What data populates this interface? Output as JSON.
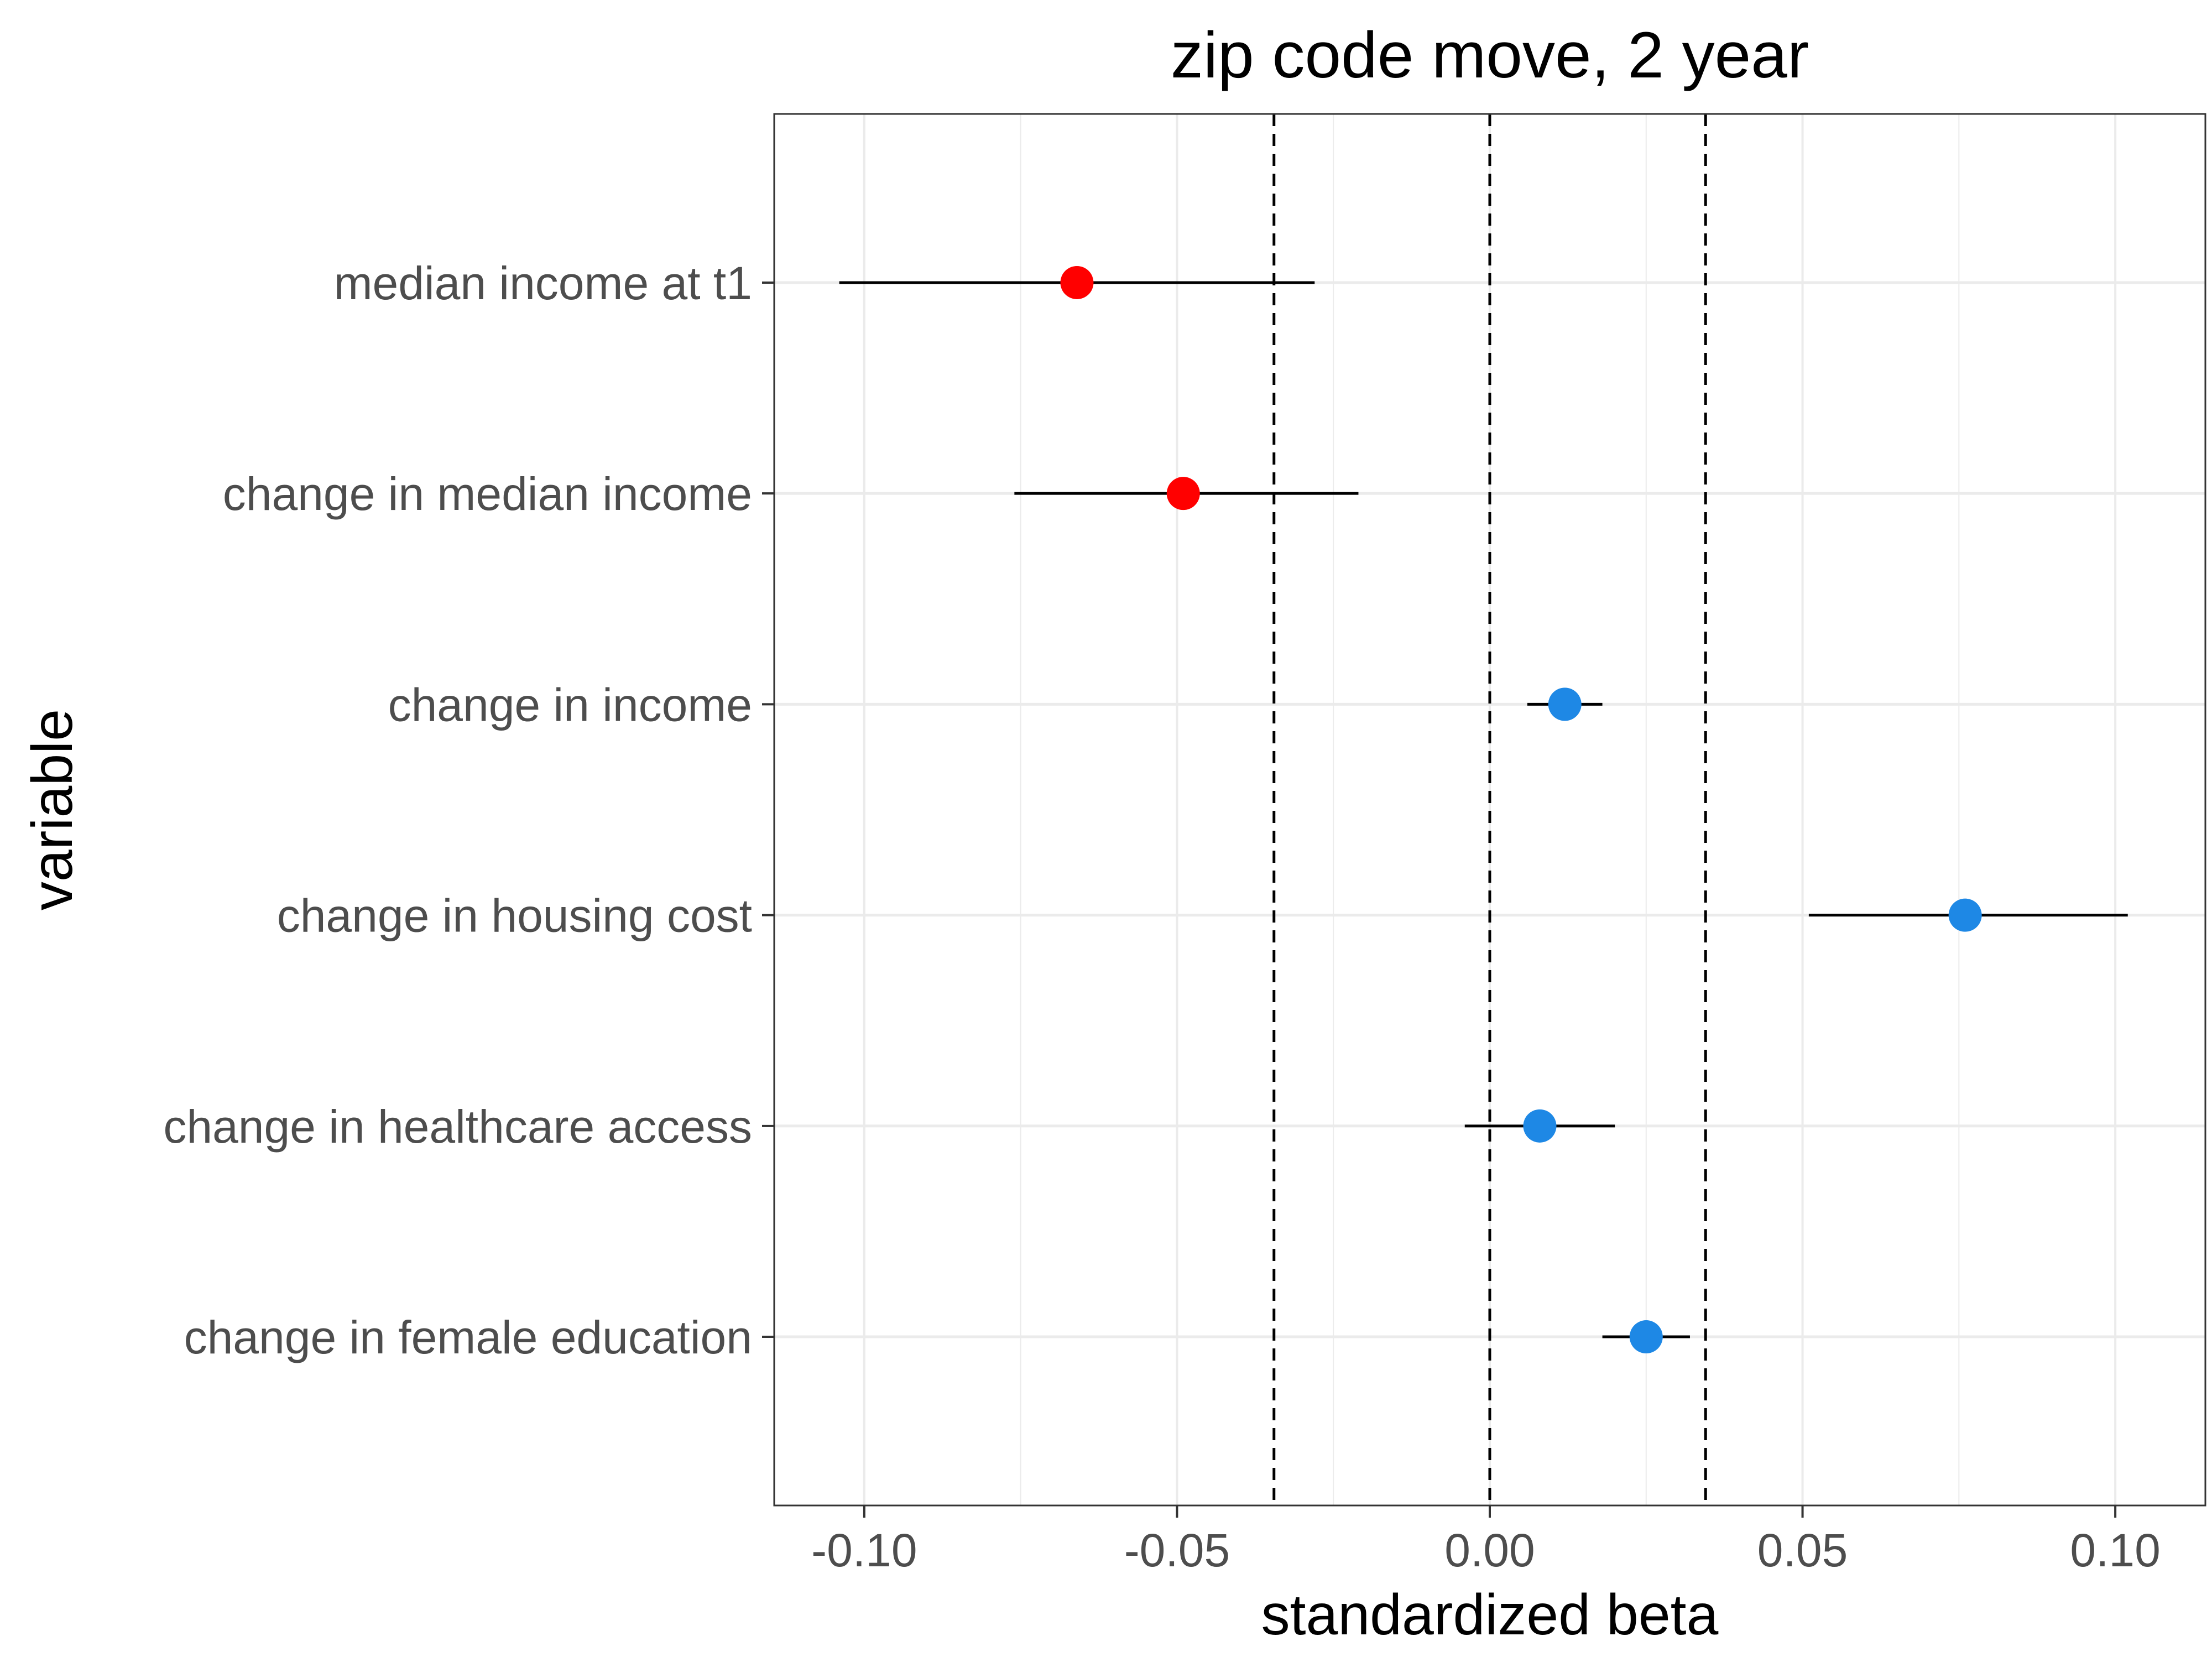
{
  "chart_data": {
    "type": "scatter",
    "title": "zip code move, 2 year",
    "xlabel": "standardized beta",
    "ylabel": "variable",
    "xlim": [
      -0.1144,
      0.1144
    ],
    "x_ticks": [
      -0.1,
      -0.05,
      0.0,
      0.05,
      0.1
    ],
    "x_tick_labels": [
      "-0.10",
      "-0.05",
      "0.00",
      "0.05",
      "0.10"
    ],
    "reference_lines": [
      -0.0345,
      0.0,
      0.0345
    ],
    "grid": true,
    "legend": "none",
    "colors": {
      "negative": "#ff0000",
      "positive": "#1e88e5",
      "errorbar": "#000000",
      "reference_line": "#000000",
      "grid": "#ebebeb",
      "tick_label": "#4d4d4d"
    },
    "categories": [
      "median income at t1",
      "change in median income",
      "change in income",
      "change in housing cost",
      "change in healthcare access",
      "change in female education"
    ],
    "points": [
      {
        "label": "median income at t1",
        "estimate": -0.066,
        "low": -0.104,
        "high": -0.028,
        "direction": "negative"
      },
      {
        "label": "change in median income",
        "estimate": -0.049,
        "low": -0.076,
        "high": -0.021,
        "direction": "negative"
      },
      {
        "label": "change in income",
        "estimate": 0.012,
        "low": 0.006,
        "high": 0.018,
        "direction": "positive"
      },
      {
        "label": "change in housing cost",
        "estimate": 0.076,
        "low": 0.051,
        "high": 0.102,
        "direction": "positive"
      },
      {
        "label": "change in healthcare access",
        "estimate": 0.008,
        "low": -0.004,
        "high": 0.02,
        "direction": "positive"
      },
      {
        "label": "change in female education",
        "estimate": 0.025,
        "low": 0.018,
        "high": 0.032,
        "direction": "positive"
      }
    ]
  }
}
